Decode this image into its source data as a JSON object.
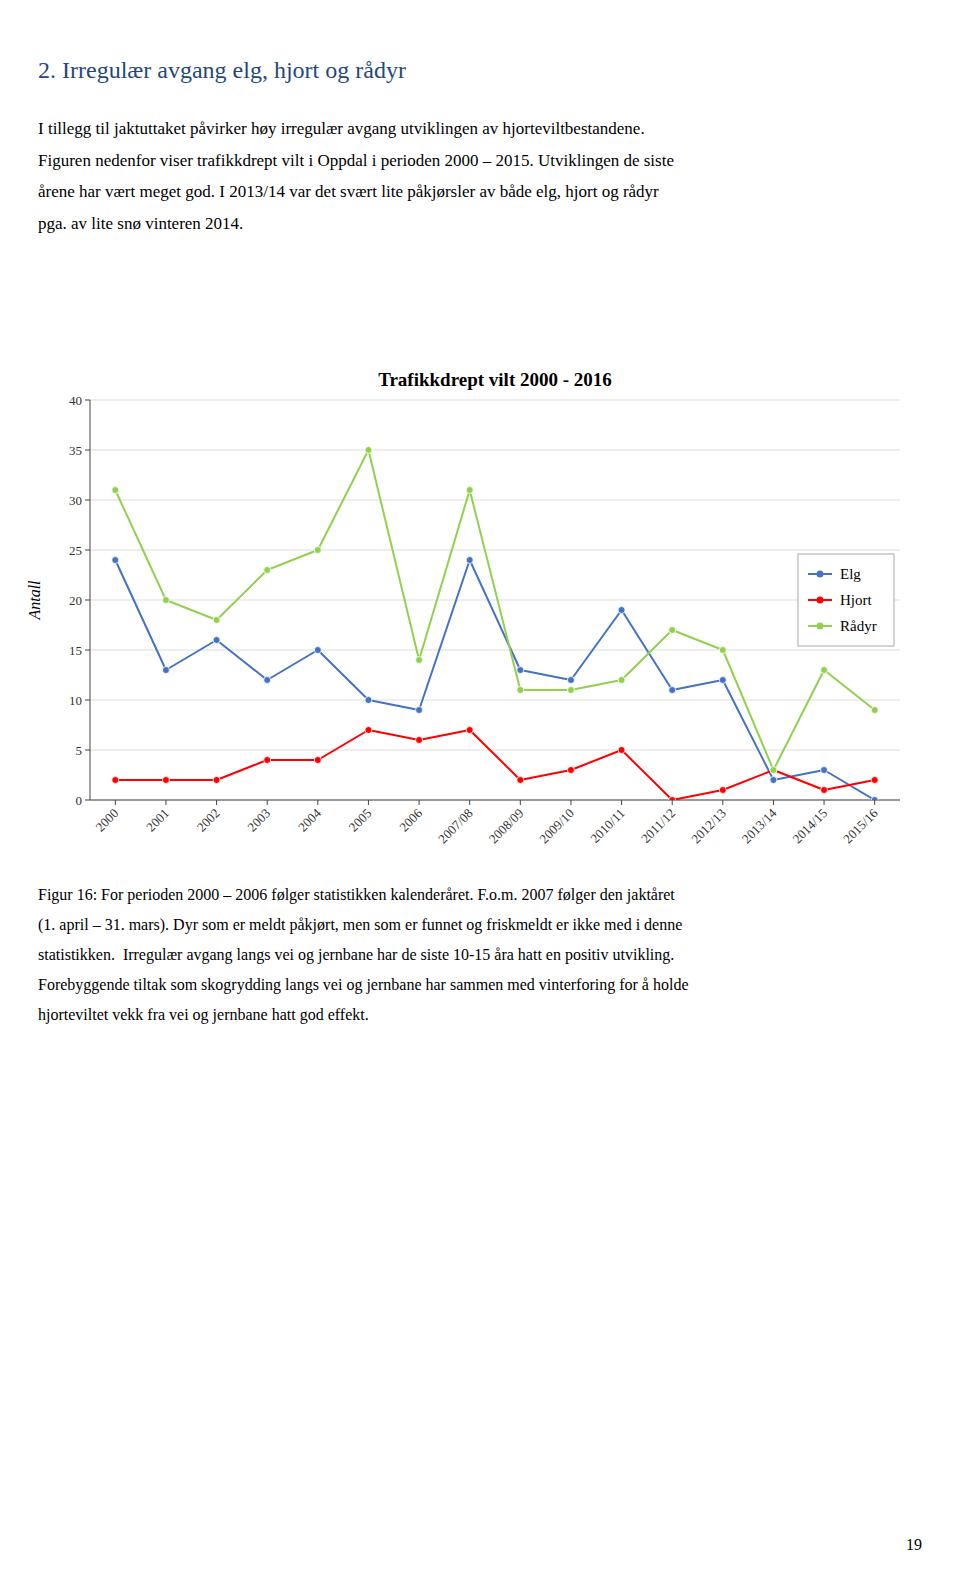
{
  "page_title": "2. Irregulær avgang elg, hjort og rådyr",
  "title_color": "#1F497D",
  "body_text": [
    "I tillegg til jaktuttaket påvirker høy irregulær avgang utviklingen av hjorteviltbestandene.",
    "Figuren nedenfor viser trafikkdrept vilt i Oppdal i perioden 2000 – 2015. Utviklingen de siste",
    "årene har vært meget god. I 2013/14 var det svært lite påkjørsler av både elg, hjort og rådyr",
    "pga. av lite snø vinteren 2014."
  ],
  "caption": [
    "Figur 16: For perioden 2000 – 2006 følger statistikken kalenderåret. F.o.m. 2007 følger den jaktåret",
    "(1. april – 31. mars). Dyr som er meldt påkjørt, men som er funnet og friskmeldt er ikke med i denne",
    "statistikken.  Irregulær avgang langs vei og jernbane har de siste 10-15 åra hatt en positiv utvikling.",
    "Forebyggende tiltak som skogrydding langs vei og jernbane har sammen med vinterforing for å holde",
    "hjorteviltet vekk fra vei og jernbane hatt god effekt."
  ],
  "page_number": "19",
  "chart_data": {
    "type": "line",
    "title": "Trafikkdrept vilt 2000 - 2016",
    "y_label": "Antall",
    "categories": [
      "2000",
      "2001",
      "2002",
      "2003",
      "2004",
      "2005",
      "2006",
      "2007/08",
      "2008/09",
      "2009/10",
      "2010/11",
      "2011/12",
      "2012/13",
      "2013/14",
      "2014/15",
      "2015/16"
    ],
    "series": [
      {
        "name": "Elg",
        "color": "#4472C4",
        "marker": "circle",
        "values": [
          24,
          13,
          16,
          12,
          15,
          10,
          9,
          24,
          13,
          12,
          19,
          11,
          12,
          2,
          3,
          0
        ]
      },
      {
        "name": "Hjort",
        "color": "#FF0000",
        "marker": "circle",
        "values": [
          2,
          2,
          2,
          4,
          4,
          7,
          6,
          7,
          2,
          3,
          5,
          0,
          1,
          3,
          1,
          2
        ]
      },
      {
        "name": "Rådyr",
        "color": "#92D050",
        "marker": "circle",
        "values": [
          31,
          20,
          18,
          23,
          25,
          35,
          14,
          31,
          11,
          11,
          12,
          17,
          15,
          3,
          13,
          9
        ]
      }
    ],
    "ylim": [
      0,
      40
    ],
    "yticks": [
      0,
      5,
      10,
      15,
      20,
      25,
      30,
      35,
      40
    ],
    "grid": true,
    "legend": "right"
  }
}
